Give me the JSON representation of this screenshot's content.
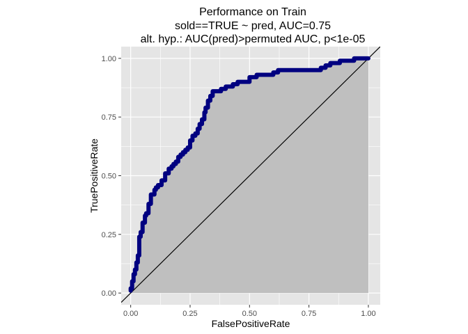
{
  "chart_data": {
    "type": "line",
    "title": "Performance on Train",
    "subtitle": "sold==TRUE ~ pred, AUC=0.75",
    "subtitle2": "alt. hyp.: AUC(pred)>permuted AUC, p<1e-05",
    "xlabel": "FalsePositiveRate",
    "ylabel": "TruePositiveRate",
    "xlim": [
      -0.04,
      1.05
    ],
    "ylim": [
      -0.05,
      1.05
    ],
    "x_ticks": [
      0.0,
      0.25,
      0.5,
      0.75,
      1.0
    ],
    "x_tick_labels": [
      "0.00",
      "0.25",
      "0.50",
      "0.75",
      "1.00"
    ],
    "y_ticks": [
      0.0,
      0.25,
      0.5,
      0.75,
      1.0
    ],
    "y_tick_labels": [
      "0.00",
      "0.25",
      "0.50",
      "0.75",
      "1.00"
    ],
    "grid": true,
    "colors": {
      "panel_background": "#e5e5e5",
      "grid": "#ffffff",
      "area_fill": "#bfbfbf",
      "roc_line": "#000080",
      "diagonal": "#000000"
    },
    "series": [
      {
        "x": [
          0.0,
          0.0,
          0.006,
          0.006,
          0.012,
          0.012,
          0.018,
          0.018,
          0.024,
          0.024,
          0.03,
          0.03,
          0.036,
          0.036,
          0.042,
          0.042,
          0.05,
          0.05,
          0.06,
          0.06,
          0.065,
          0.065,
          0.075,
          0.075,
          0.085,
          0.085,
          0.1,
          0.1,
          0.106,
          0.106,
          0.115,
          0.115,
          0.13,
          0.13,
          0.145,
          0.145,
          0.16,
          0.16,
          0.172,
          0.172,
          0.18,
          0.18,
          0.19,
          0.19,
          0.2,
          0.2,
          0.21,
          0.21,
          0.22,
          0.22,
          0.23,
          0.23,
          0.24,
          0.24,
          0.25,
          0.25,
          0.26,
          0.26,
          0.272,
          0.272,
          0.282,
          0.282,
          0.29,
          0.29,
          0.3,
          0.3,
          0.31,
          0.31,
          0.315,
          0.315,
          0.325,
          0.325,
          0.335,
          0.335,
          0.345,
          0.345,
          0.38,
          0.38,
          0.4,
          0.4,
          0.43,
          0.43,
          0.45,
          0.45,
          0.5,
          0.5,
          0.53,
          0.53,
          0.6,
          0.6,
          0.62,
          0.62,
          0.8,
          0.8,
          0.82,
          0.82,
          0.84,
          0.84,
          0.86,
          0.86,
          0.88,
          0.88,
          0.92,
          0.92,
          0.94,
          0.94,
          1.0
        ],
        "y": [
          0.01,
          0.02,
          0.02,
          0.05,
          0.05,
          0.08,
          0.08,
          0.1,
          0.1,
          0.13,
          0.13,
          0.16,
          0.16,
          0.24,
          0.24,
          0.26,
          0.26,
          0.3,
          0.3,
          0.33,
          0.33,
          0.34,
          0.34,
          0.38,
          0.38,
          0.42,
          0.42,
          0.44,
          0.44,
          0.45,
          0.45,
          0.46,
          0.46,
          0.48,
          0.48,
          0.51,
          0.51,
          0.53,
          0.53,
          0.54,
          0.54,
          0.55,
          0.55,
          0.56,
          0.56,
          0.58,
          0.58,
          0.59,
          0.59,
          0.6,
          0.6,
          0.61,
          0.61,
          0.62,
          0.62,
          0.65,
          0.65,
          0.67,
          0.67,
          0.68,
          0.68,
          0.7,
          0.7,
          0.72,
          0.72,
          0.74,
          0.74,
          0.77,
          0.77,
          0.79,
          0.79,
          0.82,
          0.82,
          0.84,
          0.84,
          0.86,
          0.86,
          0.87,
          0.87,
          0.88,
          0.88,
          0.89,
          0.89,
          0.9,
          0.9,
          0.92,
          0.92,
          0.93,
          0.93,
          0.94,
          0.94,
          0.95,
          0.95,
          0.96,
          0.96,
          0.97,
          0.97,
          0.98,
          0.98,
          0.98,
          0.98,
          0.99,
          0.99,
          0.99,
          0.99,
          1.0,
          1.0
        ]
      }
    ]
  }
}
